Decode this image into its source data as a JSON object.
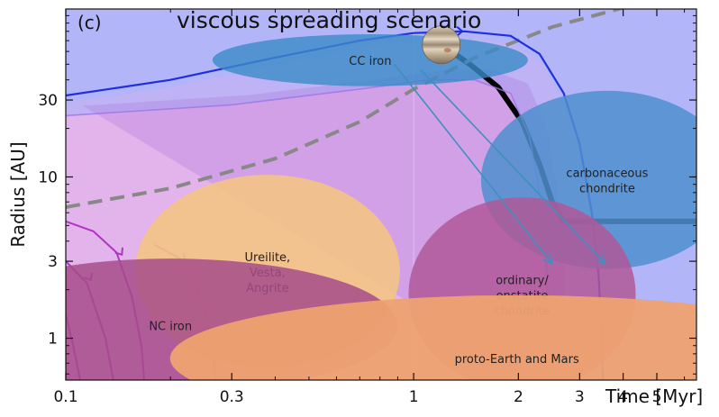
{
  "chart_data": {
    "type": "line",
    "panel_label": "(c)",
    "title": "viscous spreading  scenario",
    "xlabel": "Time [Myr]",
    "ylabel": "Radius [AU]",
    "xscale": "log",
    "yscale": "log",
    "xlim": [
      0.1,
      6.5
    ],
    "ylim": [
      0.55,
      110
    ],
    "xticks": [
      0.1,
      0.3,
      1,
      2,
      3,
      4,
      5
    ],
    "xtick_labels": [
      "0.1",
      "0.3",
      "1",
      "2",
      "3",
      "4",
      "5"
    ],
    "yticks": [
      1,
      3,
      10,
      30
    ],
    "ytick_labels": [
      "1",
      "3",
      "10",
      "30"
    ],
    "colors": {
      "background": "#b3b5f9",
      "nc_region": "#e5b3ea",
      "jupiter_path": "#000000",
      "snowline": "#888888",
      "disk_edge": "#1f2ee0",
      "inner_flow": "#b233c4",
      "arrows": "#3f8fbf"
    },
    "series": [
      {
        "style": "thick-black",
        "x": [
          1.2,
          1.45,
          1.75,
          2.05,
          2.3,
          2.5,
          2.7,
          3.5,
          6.5
        ],
        "y": [
          66,
          50,
          36,
          22,
          12,
          7,
          5.3,
          5.3,
          5.3
        ]
      },
      {
        "style": "dashed-gray",
        "x": [
          0.1,
          0.2,
          0.4,
          0.7,
          1.0,
          1.5,
          2.5,
          4.5,
          6.5
        ],
        "y": [
          6.5,
          8.5,
          13,
          22,
          35,
          55,
          85,
          120,
          150
        ]
      },
      {
        "style": "blue-outer",
        "x": [
          0.1,
          0.2,
          0.4,
          0.7,
          1.0,
          1.4,
          1.9,
          2.3,
          2.7,
          3.0,
          3.25,
          3.4,
          3.48,
          3.5
        ],
        "y": [
          32,
          40,
          55,
          70,
          78,
          80,
          75,
          58,
          33,
          16,
          6,
          2.5,
          0.9,
          0.55
        ]
      },
      {
        "style": "purple-outer",
        "x": [
          0.1,
          0.3,
          0.7,
          1.1,
          1.5,
          1.9,
          2.15,
          2.3,
          2.4,
          2.45,
          2.5
        ],
        "y": [
          24,
          28,
          35,
          40,
          40,
          33,
          18,
          8,
          3,
          1.2,
          0.55
        ]
      },
      {
        "style": "magenta-flow",
        "x": [
          0.1,
          0.12,
          0.14,
          0.155,
          0.165,
          0.168
        ],
        "y": [
          5.3,
          4.6,
          3.4,
          1.8,
          0.9,
          0.55
        ]
      },
      {
        "style": "magenta-flow",
        "x": [
          0.1,
          0.115,
          0.13,
          0.137
        ],
        "y": [
          3.0,
          2.2,
          1.0,
          0.55
        ]
      },
      {
        "style": "magenta-flow",
        "x": [
          0.1,
          0.105,
          0.11
        ],
        "y": [
          1.4,
          0.9,
          0.55
        ]
      },
      {
        "style": "magenta-flow",
        "x": [
          0.18,
          0.22,
          0.25,
          0.265,
          0.27
        ],
        "y": [
          3.8,
          3.0,
          1.6,
          0.8,
          0.55
        ]
      }
    ],
    "regions": [
      {
        "label": "CC iron",
        "x": 0.75,
        "y": 53,
        "rx": 0.25,
        "ry": 0.07,
        "color": "#3b8bc8",
        "opacity": 0.8
      },
      {
        "label": "carbonaceous\nchondrite",
        "x": 3.6,
        "y": 9.6,
        "rx": 0.2,
        "ry": 0.24,
        "color": "#4f8fce",
        "opacity": 0.85
      },
      {
        "label": "Ureilite,\nVesta,\nAngrite",
        "x": 0.38,
        "y": 2.6,
        "rx": 0.21,
        "ry": 0.26,
        "color": "#f3c385",
        "opacity": 0.9
      },
      {
        "label": "ordinary/\nenstatite\nchondrite",
        "x": 2.05,
        "y": 1.88,
        "rx": 0.18,
        "ry": 0.26,
        "color": "#b05898",
        "opacity": 0.85
      },
      {
        "label": "NC iron",
        "x": 0.2,
        "y": 1.2,
        "rx": 0.36,
        "ry": 0.18,
        "color": "#a64c8a",
        "opacity": 0.85
      },
      {
        "label": "proto-Earth and Mars",
        "x": 1.98,
        "y": 0.75,
        "rx": 0.55,
        "ry": 0.17,
        "color": "#eea270",
        "opacity": 0.95
      }
    ],
    "arrows": [
      {
        "from": [
          0.88,
          50
        ],
        "to": [
          2.5,
          2.9
        ]
      },
      {
        "from": [
          1.05,
          46
        ],
        "to": [
          3.55,
          2.9
        ]
      }
    ],
    "markers": [
      {
        "icon": "jupiter-icon",
        "x": 1.2,
        "y": 66
      }
    ]
  }
}
